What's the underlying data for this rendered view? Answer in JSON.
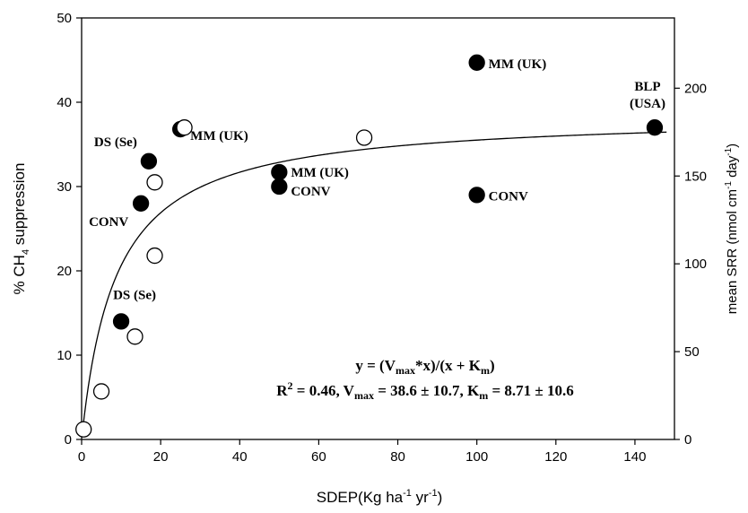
{
  "chart_data": {
    "type": "scatter",
    "xlabel": {
      "main": "SDEP(Kg ha",
      "e1": "-1",
      "mid": " yr",
      "e2": "-1",
      "end": ")"
    },
    "ylabel_left": {
      "pre": "% CH",
      "sub": "4",
      "post": " suppression"
    },
    "ylabel_right": {
      "pre": "mean SRR (nmol cm",
      "e1": "-1",
      "mid": " day",
      "e2": "-1",
      "end": ")"
    },
    "xlim": [
      0,
      150
    ],
    "ylim_left": [
      0,
      50
    ],
    "ylim_right": [
      0,
      240
    ],
    "x_ticks": [
      "0",
      "20",
      "40",
      "60",
      "80",
      "100",
      "120",
      "140"
    ],
    "y_ticks_left": [
      "0",
      "10",
      "20",
      "30",
      "40",
      "50"
    ],
    "y_ticks_right": [
      "0",
      "50",
      "100",
      "150",
      "200"
    ],
    "grid": false,
    "series": [
      {
        "marker": "filled-circle",
        "color": "#000000",
        "points": [
          {
            "x": 10,
            "y": 14,
            "label": "DS (Se)"
          },
          {
            "x": 15,
            "y": 28,
            "label": "CONV"
          },
          {
            "x": 17,
            "y": 33,
            "label": "DS (Se)"
          },
          {
            "x": 25,
            "y": 36.8,
            "label": "MM (UK)"
          },
          {
            "x": 50,
            "y": 31.7,
            "label": "MM (UK)"
          },
          {
            "x": 50,
            "y": 30,
            "label": "CONV"
          },
          {
            "x": 100,
            "y": 44.7,
            "label": "MM (UK)"
          },
          {
            "x": 100,
            "y": 29,
            "label": "CONV"
          },
          {
            "x": 145,
            "y": 37,
            "label": [
              "BLP",
              "(USA)"
            ]
          }
        ]
      },
      {
        "marker": "open-circle",
        "color": "#000000",
        "points": [
          {
            "x": 0.5,
            "y": 1.2
          },
          {
            "x": 5,
            "y": 5.7
          },
          {
            "x": 13.5,
            "y": 12.2
          },
          {
            "x": 18.5,
            "y": 21.8
          },
          {
            "x": 18.5,
            "y": 30.5
          },
          {
            "x": 26,
            "y": 37
          },
          {
            "x": 71.5,
            "y": 35.8
          }
        ]
      }
    ],
    "fit": {
      "model": "michaelis-menten",
      "vmax": 38.6,
      "km": 8.71,
      "x_range": [
        0.2,
        148
      ]
    },
    "equation": {
      "line1": {
        "a": "y = (V",
        "s1": "max",
        "b": "*x)/(x + K",
        "s2": "m",
        "c": ")"
      },
      "line2": {
        "a": "R",
        "sup": "2",
        "b": " = 0.46, V",
        "s1": "max",
        "c": " = 38.6 ± 10.7, K",
        "s2": "m",
        "d": " = 8.71 ± 10.6"
      }
    }
  }
}
